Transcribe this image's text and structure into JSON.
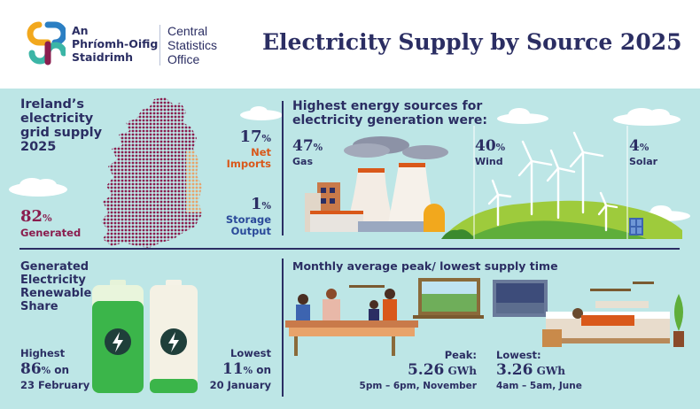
{
  "header": {
    "org_irish": [
      "An",
      "Phríomh-Oifig",
      "Staidrimh"
    ],
    "org_english": [
      "Central",
      "Statistics",
      "Office"
    ],
    "title": "Electricity Supply by Source 2025"
  },
  "grid_supply": {
    "heading": [
      "Ireland’s",
      "electricity",
      "grid supply",
      "2025"
    ],
    "generated": {
      "value": "82",
      "unit": "%",
      "label": "Generated"
    },
    "net_imports": {
      "value": "17",
      "unit": "%",
      "label": [
        "Net",
        "Imports"
      ]
    },
    "storage": {
      "value": "1",
      "unit": "%",
      "label": [
        "Storage",
        "Output"
      ]
    }
  },
  "sources": {
    "heading": [
      "Highest energy sources for",
      "electricity generation were:"
    ],
    "gas": {
      "value": "47",
      "unit": "%",
      "label": "Gas"
    },
    "wind": {
      "value": "40",
      "unit": "%",
      "label": "Wind"
    },
    "solar": {
      "value": "4",
      "unit": "%",
      "label": "Solar"
    }
  },
  "renewable": {
    "heading": [
      "Generated",
      "Electricity",
      "Renewable",
      "Share"
    ],
    "highest": {
      "label": "Highest",
      "value": "86",
      "unit": "%",
      "suffix": " on",
      "date": "23 February"
    },
    "lowest": {
      "label": "Lowest",
      "value": "11",
      "unit": "%",
      "suffix": " on",
      "date": "20 January"
    }
  },
  "monthly": {
    "heading": "Monthly average peak/ lowest supply time",
    "peak": {
      "label": "Peak:",
      "value": "5.26",
      "unit": " GWh",
      "time": "5pm – 6pm, November"
    },
    "lowest": {
      "label": "Lowest:",
      "value": "3.26",
      "unit": " GWh",
      "time": "4am – 5am, June"
    }
  },
  "colors": {
    "navy": "#2b2e63",
    "maroon": "#8a1d4e",
    "orange": "#d9581a",
    "teal_bg": "#bde6e6",
    "green": "#3bb54a"
  },
  "icons": [
    "cso-logo",
    "ireland-map",
    "power-station",
    "wind-turbine",
    "solar-panel",
    "battery-high",
    "battery-low",
    "lightning-icon",
    "kitchen-scene",
    "bedroom-scene"
  ]
}
